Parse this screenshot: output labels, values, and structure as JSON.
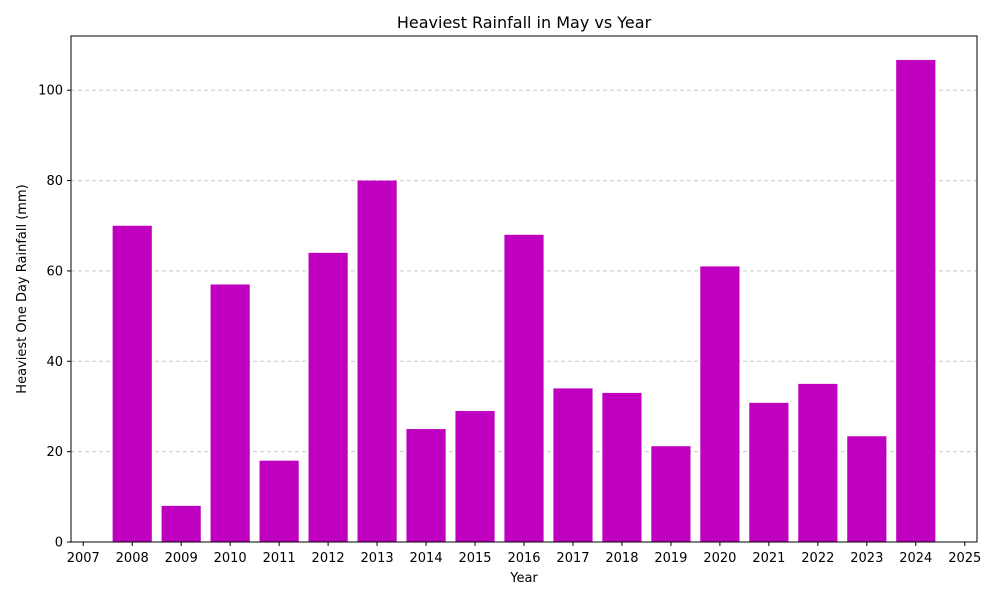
{
  "chart_data": {
    "type": "bar",
    "title": "Heaviest Rainfall in May vs Year",
    "xlabel": "Year",
    "ylabel": "Heaviest One Day Rainfall (mm)",
    "x": [
      2008,
      2009,
      2010,
      2011,
      2012,
      2013,
      2014,
      2015,
      2016,
      2017,
      2018,
      2019,
      2020,
      2021,
      2022,
      2023,
      2024
    ],
    "values": [
      70,
      8,
      57,
      18,
      64,
      80,
      25,
      29,
      68,
      34,
      33,
      21.2,
      61,
      30.8,
      35,
      23.4,
      106.7
    ],
    "xlim": [
      2006.75,
      2025.25
    ],
    "ylim": [
      0,
      112
    ],
    "xticks": [
      2007,
      2008,
      2009,
      2010,
      2011,
      2012,
      2013,
      2014,
      2015,
      2016,
      2017,
      2018,
      2019,
      2020,
      2021,
      2022,
      2023,
      2024,
      2025
    ],
    "yticks": [
      0,
      20,
      40,
      60,
      80,
      100
    ],
    "grid": "y-dashed",
    "bar_color": "#bf00bf",
    "grid_color": "#c8c8c8"
  }
}
